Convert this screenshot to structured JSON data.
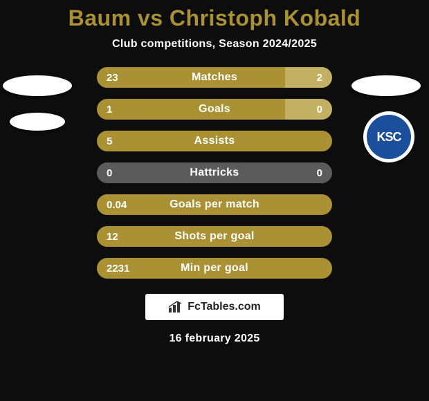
{
  "title": {
    "text": "Baum vs Christoph Kobald",
    "color": "#aa9133",
    "fontsize": 32
  },
  "subtitle": {
    "text": "Club competitions, Season 2024/2025",
    "color": "#ffffff",
    "fontsize": 16
  },
  "bar_style": {
    "left_color": "#aa9133",
    "right_color": "#c2b163",
    "neutral_color": "#5b5b5b",
    "track_color": "#222222",
    "height": 30,
    "gap": 16,
    "border_radius": 15,
    "label_fontsize": 16,
    "value_fontsize": 15,
    "text_color": "#ffffff"
  },
  "background_color": "#0d0d0d",
  "rows": [
    {
      "label": "Matches",
      "left": "23",
      "right": "2",
      "left_pct": 80,
      "right_pct": 20
    },
    {
      "label": "Goals",
      "left": "1",
      "right": "0",
      "left_pct": 80,
      "right_pct": 20
    },
    {
      "label": "Assists",
      "left": "5",
      "right": "",
      "left_pct": 100,
      "right_pct": 0
    },
    {
      "label": "Hattricks",
      "left": "0",
      "right": "0",
      "left_pct": 0,
      "right_pct": 0
    },
    {
      "label": "Goals per match",
      "left": "0.04",
      "right": "",
      "left_pct": 100,
      "right_pct": 0
    },
    {
      "label": "Shots per goal",
      "left": "12",
      "right": "",
      "left_pct": 100,
      "right_pct": 0
    },
    {
      "label": "Min per goal",
      "left": "2231",
      "right": "",
      "left_pct": 100,
      "right_pct": 0
    }
  ],
  "right_club": {
    "abbr": "KSC",
    "bg": "#1b4f9c"
  },
  "footer": {
    "brand": "FcTables.com",
    "date": "16 february 2025"
  }
}
